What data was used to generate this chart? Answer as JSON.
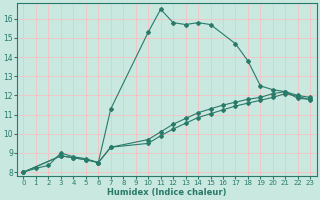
{
  "xlabel": "Humidex (Indice chaleur)",
  "background_color": "#c8e8e0",
  "grid_color": "#f0c8c8",
  "line_color": "#2a7a6a",
  "xlim": [
    -0.5,
    23.5
  ],
  "ylim": [
    7.8,
    16.8
  ],
  "xtick_labels": [
    "0",
    "1",
    "2",
    "3",
    "4",
    "5",
    "6",
    "7",
    "8",
    "9",
    "10",
    "11",
    "12",
    "13",
    "14",
    "15",
    "16",
    "17",
    "18",
    "19",
    "20",
    "21",
    "22",
    "23"
  ],
  "xtick_vals": [
    0,
    1,
    2,
    3,
    4,
    5,
    6,
    7,
    8,
    9,
    10,
    11,
    12,
    13,
    14,
    15,
    16,
    17,
    18,
    19,
    20,
    21,
    22,
    23
  ],
  "ytick_vals": [
    8,
    9,
    10,
    11,
    12,
    13,
    14,
    15,
    16
  ],
  "s1x": [
    0,
    1,
    2,
    3,
    4,
    5,
    6,
    7,
    10,
    11,
    12,
    13,
    14,
    15,
    17,
    18,
    19,
    20,
    21,
    22,
    23
  ],
  "s1y": [
    8.0,
    8.2,
    8.35,
    9.0,
    8.8,
    8.7,
    8.5,
    11.3,
    15.3,
    16.5,
    15.8,
    15.7,
    15.8,
    15.7,
    14.7,
    13.8,
    12.5,
    12.3,
    12.2,
    11.85,
    11.8
  ],
  "s2x": [
    0,
    3,
    4,
    5,
    6,
    7,
    10,
    11,
    12,
    13,
    14,
    15,
    16,
    17,
    18,
    19,
    20,
    21,
    22,
    23
  ],
  "s2y": [
    8.0,
    8.85,
    8.75,
    8.65,
    8.5,
    9.3,
    9.7,
    10.1,
    10.5,
    10.8,
    11.1,
    11.3,
    11.5,
    11.65,
    11.8,
    11.9,
    12.1,
    12.2,
    12.0,
    11.9
  ],
  "s3x": [
    0,
    3,
    4,
    5,
    6,
    7,
    10,
    11,
    12,
    13,
    14,
    15,
    16,
    17,
    18,
    19,
    20,
    21,
    22,
    23
  ],
  "s3y": [
    8.0,
    8.85,
    8.75,
    8.65,
    8.5,
    9.3,
    9.5,
    9.9,
    10.25,
    10.55,
    10.85,
    11.05,
    11.25,
    11.45,
    11.6,
    11.75,
    11.9,
    12.1,
    11.95,
    11.78
  ]
}
